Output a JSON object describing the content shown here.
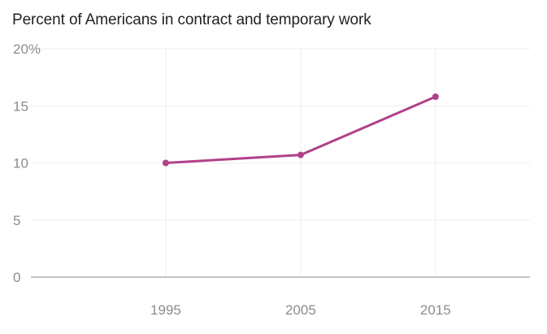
{
  "chart_data": {
    "type": "line",
    "title": "Percent of Americans in contract and temporary work",
    "xlabel": "",
    "ylabel": "",
    "x": [
      1995,
      2005,
      2015
    ],
    "series": [
      {
        "values": [
          10.0,
          10.7,
          15.8
        ]
      }
    ],
    "x_ticks": [
      "1995",
      "2005",
      "2015"
    ],
    "y_ticks": [
      "0",
      "5",
      "10",
      "15",
      "20%"
    ],
    "xlim": [
      1985,
      2022
    ],
    "ylim": [
      0,
      20
    ],
    "grid": true,
    "legend": "none",
    "colors": {
      "line": "#b0418a",
      "grid": "#eeeeee",
      "axis": "#888888",
      "tick_text": "#8c8c8c",
      "title_text": "#222222"
    }
  }
}
